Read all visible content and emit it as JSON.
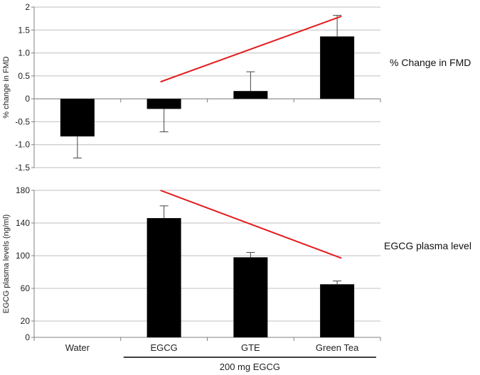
{
  "chart_data": [
    {
      "type": "bar",
      "categories": [
        "Water",
        "EGCG",
        "GTE",
        "Green Tea"
      ],
      "values": [
        -0.82,
        -0.22,
        0.17,
        1.36
      ],
      "error_bars": [
        0.47,
        0.5,
        0.42,
        0.46
      ],
      "ylabel": "% change in FMD",
      "ylim": [
        -1.5,
        2
      ],
      "yticks": [
        "2",
        "1.5",
        "1.0",
        "0.5",
        "0",
        "-0.5",
        "-1.0",
        "-1.5"
      ],
      "ytick_values": [
        2,
        1.5,
        1.0,
        0.5,
        0,
        -0.5,
        -1.0,
        -1.5
      ],
      "side_label": "% Change in FMD",
      "trend_line": {
        "from": {
          "category": "EGCG",
          "y": 0.37
        },
        "to": {
          "category": "Green Tea",
          "y": 1.8
        }
      },
      "grid": true,
      "colors": {
        "bars": "#000000",
        "trend": "#e31a1c"
      }
    },
    {
      "type": "bar",
      "categories": [
        "Water",
        "EGCG",
        "GTE",
        "Green Tea"
      ],
      "values": [
        null,
        146,
        98,
        65
      ],
      "error_bars": [
        null,
        15,
        6,
        4
      ],
      "ylabel": "EGCG plasma levels (ng/ml)",
      "ylim": [
        0,
        180
      ],
      "yticks": [
        "180",
        "140",
        "100",
        "60",
        "20",
        "0"
      ],
      "ytick_values": [
        180,
        140,
        100,
        60,
        20,
        0
      ],
      "side_label": "EGCG plasma level",
      "trend_line": {
        "from": {
          "category": "EGCG",
          "y": 180
        },
        "to": {
          "category": "Green Tea",
          "y": 97
        }
      },
      "grid": true,
      "colors": {
        "bars": "#000000",
        "trend": "#e31a1c"
      }
    }
  ],
  "categories": [
    "Water",
    "EGCG",
    "GTE",
    "Green Tea"
  ],
  "group_label": "200 mg EGCG"
}
